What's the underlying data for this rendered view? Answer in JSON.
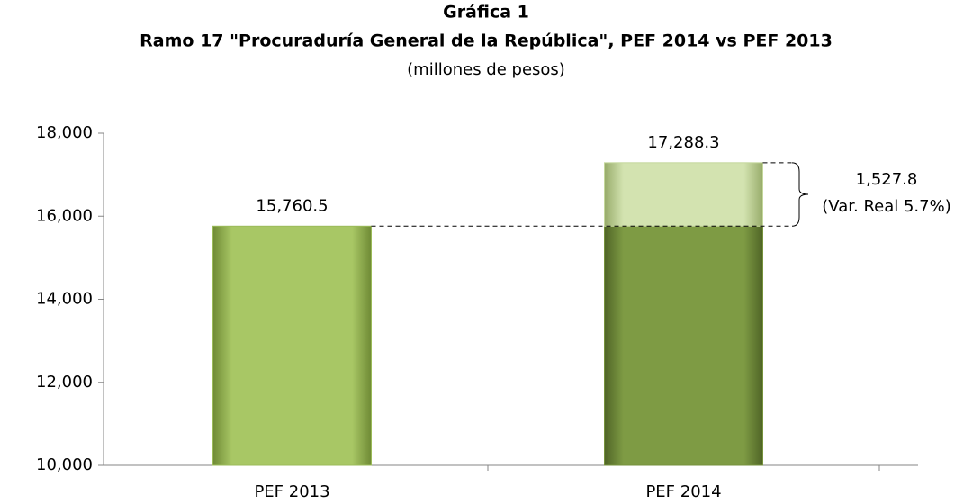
{
  "chart_data": {
    "type": "bar",
    "title": "Gráfica 1",
    "subtitle": "Ramo 17 \"Procuraduría General de la República\", PEF 2014 vs PEF 2013",
    "unit_label": "(millones de pesos)",
    "categories": [
      "PEF 2013",
      "PEF 2014"
    ],
    "values": [
      15760.5,
      17288.3
    ],
    "value_labels": [
      "15,760.5",
      "17,288.3"
    ],
    "colors": [
      "#9bbb59",
      "#76923c"
    ],
    "increase_color": "#c4d79b",
    "difference": {
      "value": 1527.8,
      "label": "1,527.8",
      "note": "(Var. Real 5.7%)"
    },
    "ylim": [
      10000,
      18000
    ],
    "yticks": [
      {
        "value": 10000,
        "label": "10,000"
      },
      {
        "value": 12000,
        "label": "12,000"
      },
      {
        "value": 14000,
        "label": "14,000"
      },
      {
        "value": 16000,
        "label": "16,000"
      },
      {
        "value": 18000,
        "label": "18,000"
      }
    ],
    "grid": false
  }
}
